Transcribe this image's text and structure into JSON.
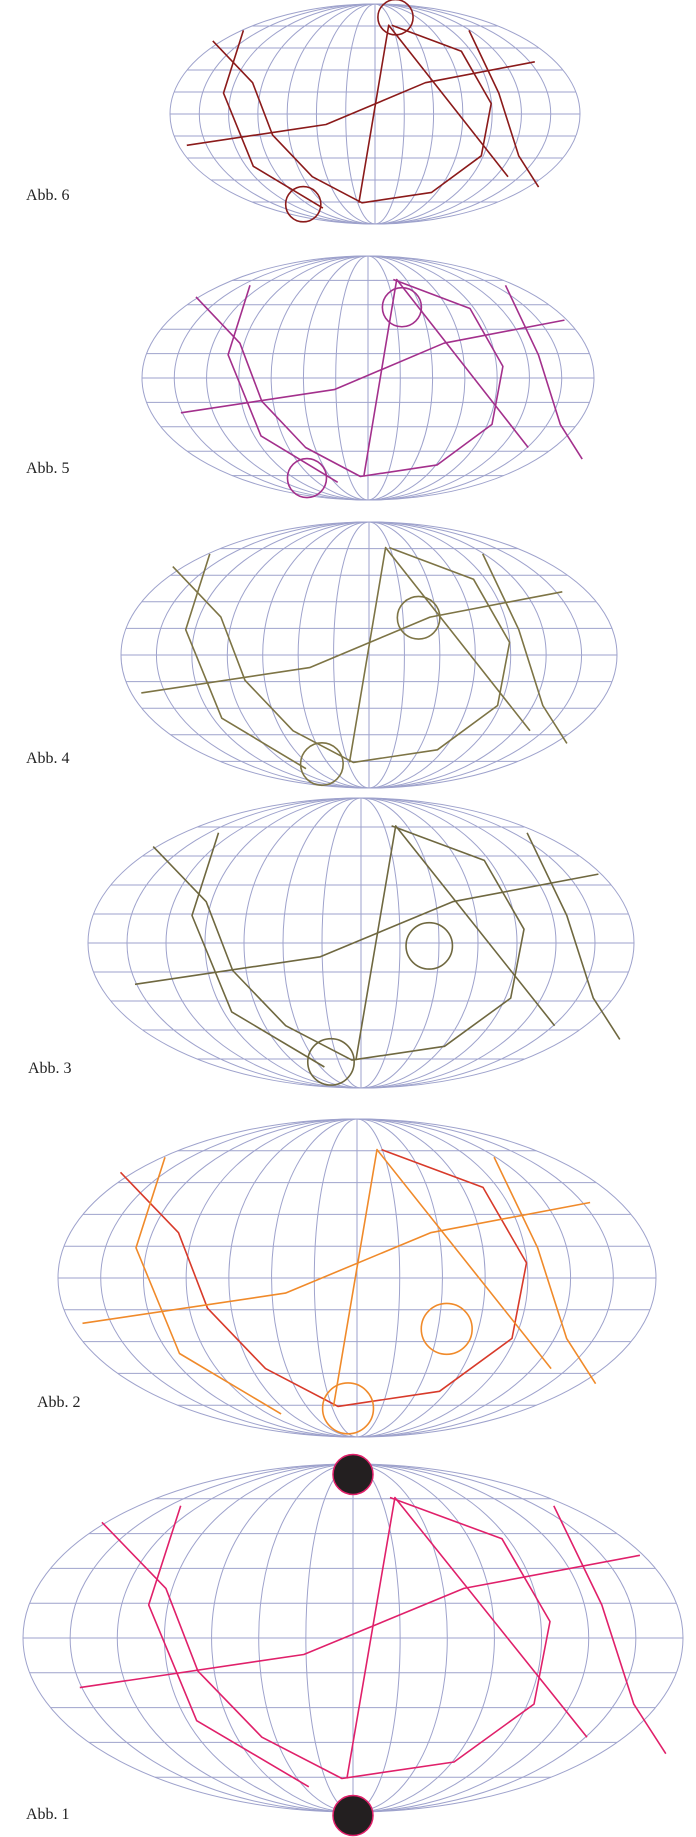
{
  "figures": [
    {
      "label": "Abb. 6"
    },
    {
      "label": "Abb. 5"
    },
    {
      "label": "Abb. 4"
    },
    {
      "label": "Abb. 3"
    },
    {
      "label": "Abb. 2"
    },
    {
      "label": "Abb. 1"
    }
  ]
}
